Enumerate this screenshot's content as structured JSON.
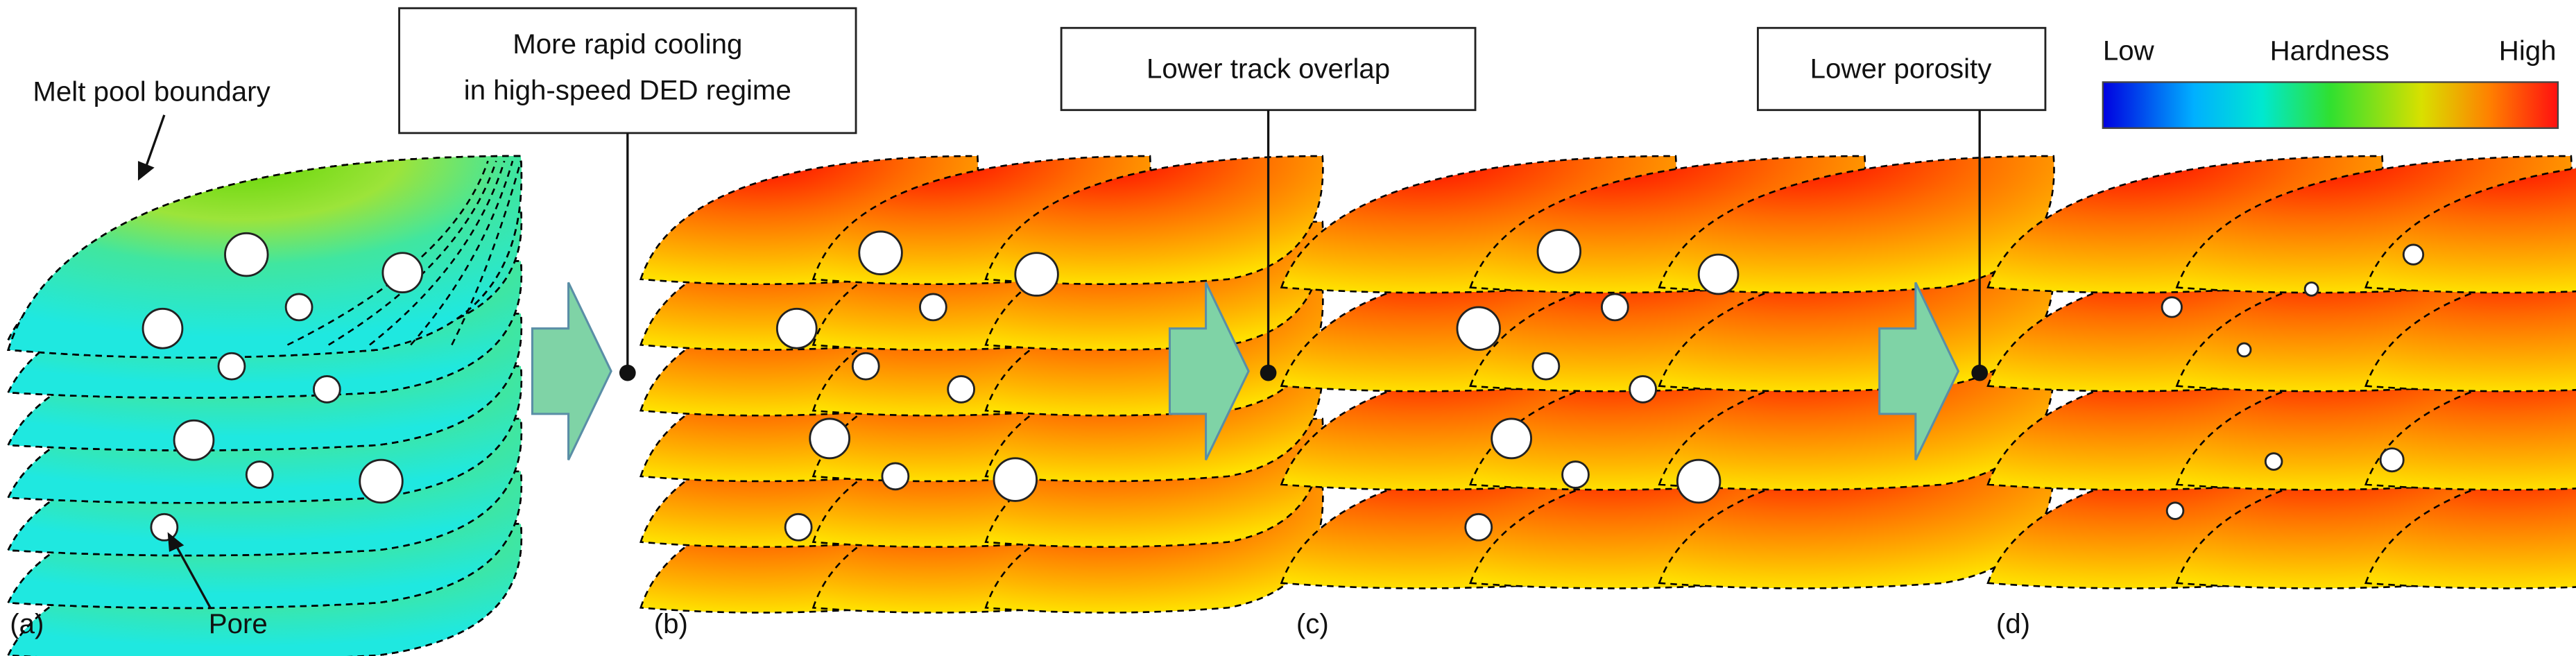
{
  "annotations": {
    "melt_pool_boundary": "Melt pool boundary",
    "pore": "Pore"
  },
  "panels": [
    {
      "label": "(a)"
    },
    {
      "label": "(b)"
    },
    {
      "label": "(c)"
    },
    {
      "label": "(d)"
    }
  ],
  "callouts": [
    {
      "lines": [
        "More rapid cooling",
        "in high-speed DED regime"
      ]
    },
    {
      "lines": [
        "Lower track overlap"
      ]
    },
    {
      "lines": [
        "Lower porosity"
      ]
    }
  ],
  "colorbar": {
    "low": "Low",
    "title": "Hardness",
    "high": "High"
  }
}
